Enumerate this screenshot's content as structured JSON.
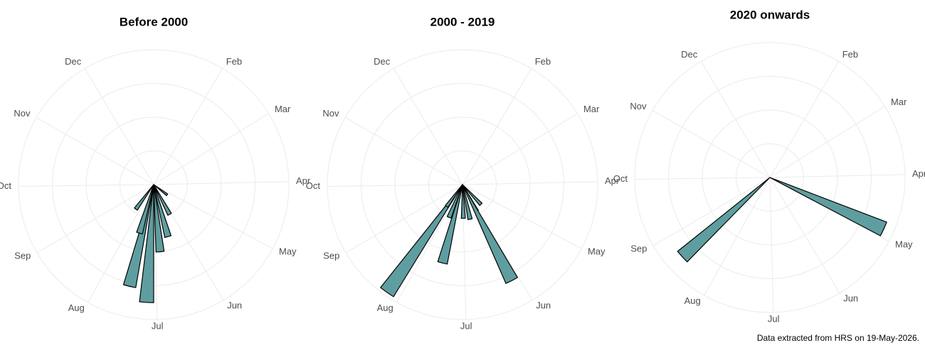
{
  "chart_data": [
    {
      "type": "polar-bar",
      "title": "Before 2000",
      "color": "#5f9ea0",
      "x": [
        130,
        155,
        168,
        178,
        187,
        197,
        200,
        220
      ],
      "values": [
        0.5,
        1.0,
        1.6,
        2.0,
        3.5,
        3.1,
        1.5,
        0.9
      ],
      "xlim": [
        1,
        366
      ],
      "ylim": [
        0,
        4
      ],
      "yticks": [
        1,
        2,
        3,
        4
      ],
      "grid": true,
      "xticks": [
        {
          "value": 32,
          "label": "Feb"
        },
        {
          "value": 60,
          "label": "Mar"
        },
        {
          "value": 91,
          "label": "Apr"
        },
        {
          "value": 121,
          "label": "May"
        },
        {
          "value": 152,
          "label": "Jun"
        },
        {
          "value": 182,
          "label": "Jul"
        },
        {
          "value": 213,
          "label": "Aug"
        },
        {
          "value": 244,
          "label": "Sep"
        },
        {
          "value": 274,
          "label": "Oct"
        },
        {
          "value": 305,
          "label": "Nov"
        },
        {
          "value": 335,
          "label": "Dec"
        }
      ]
    },
    {
      "type": "polar-bar",
      "title": "2000 - 2019",
      "color": "#5f9ea0",
      "x": [
        140,
        155,
        156,
        171,
        182,
        198,
        206,
        219,
        220
      ],
      "values": [
        0.8,
        0.9,
        3.2,
        1.05,
        1.0,
        2.4,
        1.05,
        3.9,
        0.8
      ],
      "xlim": [
        1,
        366
      ],
      "ylim": [
        0,
        4
      ],
      "yticks": [
        1,
        2,
        3,
        4
      ],
      "grid": true,
      "xticks": [
        {
          "value": 32,
          "label": "Feb"
        },
        {
          "value": 60,
          "label": "Mar"
        },
        {
          "value": 91,
          "label": "Apr"
        },
        {
          "value": 121,
          "label": "May"
        },
        {
          "value": 152,
          "label": "Jun"
        },
        {
          "value": 182,
          "label": "Jul"
        },
        {
          "value": 213,
          "label": "Aug"
        },
        {
          "value": 244,
          "label": "Sep"
        },
        {
          "value": 274,
          "label": "Oct"
        },
        {
          "value": 305,
          "label": "Nov"
        },
        {
          "value": 335,
          "label": "Dec"
        }
      ]
    },
    {
      "type": "polar-bar",
      "title": "2020 onwards",
      "color": "#5f9ea0",
      "x": [
        117,
        232
      ],
      "values": [
        3.7,
        3.5
      ],
      "xlim": [
        1,
        366
      ],
      "ylim": [
        0,
        4
      ],
      "yticks": [
        1,
        2,
        3,
        4
      ],
      "grid": true,
      "xticks": [
        {
          "value": 32,
          "label": "Feb"
        },
        {
          "value": 60,
          "label": "Mar"
        },
        {
          "value": 91,
          "label": "Apr"
        },
        {
          "value": 121,
          "label": "May"
        },
        {
          "value": 152,
          "label": "Jun"
        },
        {
          "value": 182,
          "label": "Jul"
        },
        {
          "value": 213,
          "label": "Aug"
        },
        {
          "value": 244,
          "label": "Sep"
        },
        {
          "value": 274,
          "label": "Oct"
        },
        {
          "value": 305,
          "label": "Nov"
        },
        {
          "value": 335,
          "label": "Dec"
        }
      ]
    }
  ],
  "caption": "Data extracted from HRS on 19-May-2026."
}
